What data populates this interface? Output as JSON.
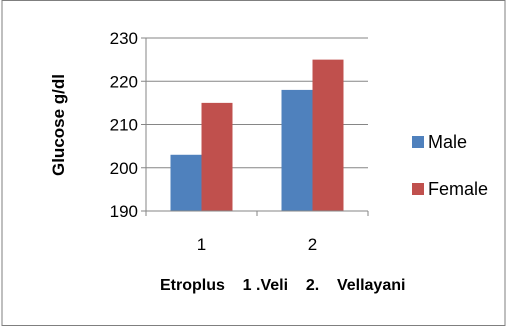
{
  "chart_data": {
    "type": "bar",
    "categories": [
      "1",
      "2"
    ],
    "series": [
      {
        "name": "Male",
        "values": [
          203,
          218
        ],
        "color": "#4F81BD"
      },
      {
        "name": "Female",
        "values": [
          215,
          225
        ],
        "color": "#C0504D"
      }
    ],
    "xlabel": "Etroplus    1 .Veli    2.    Vellayani",
    "ylabel": "Glucose g/dl",
    "ylim": [
      190,
      230
    ],
    "yticks": [
      "190",
      "200",
      "210",
      "220",
      "230"
    ],
    "grid": true,
    "legend": "right"
  }
}
